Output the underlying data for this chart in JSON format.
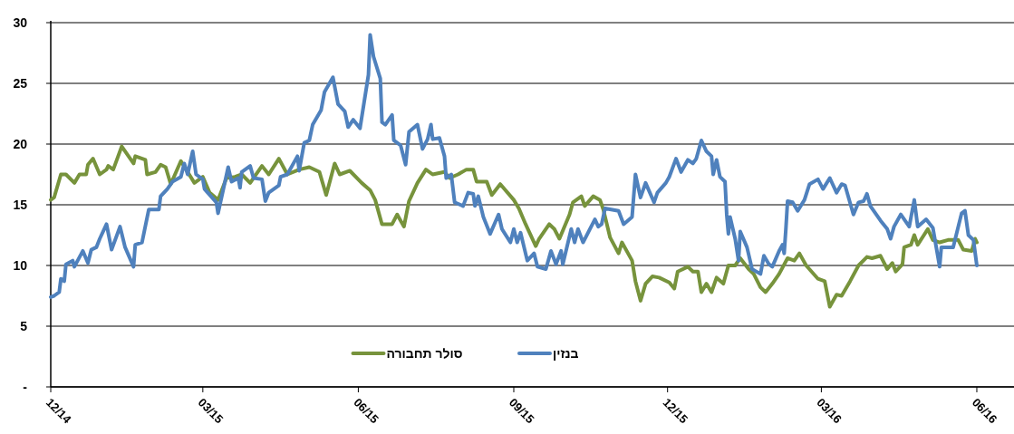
{
  "chart_data": {
    "type": "line",
    "xlim": [
      "2014-12-01",
      "2016-06-23"
    ],
    "xticks": [
      {
        "value": "2014-12-01",
        "label": "12/14"
      },
      {
        "value": "2015-03-01",
        "label": "03/15"
      },
      {
        "value": "2015-06-01",
        "label": "06/15"
      },
      {
        "value": "2015-09-01",
        "label": "09/15"
      },
      {
        "value": "2015-12-01",
        "label": "12/15"
      },
      {
        "value": "2016-03-01",
        "label": "03/16"
      },
      {
        "value": "2016-06-01",
        "label": "06/16"
      }
    ],
    "ylim": [
      0,
      30
    ],
    "yticks": [
      {
        "value": 0,
        "label": "-"
      },
      5,
      10,
      15,
      20,
      25,
      30
    ],
    "grid": "y",
    "legend": "bottom",
    "series": [
      {
        "name": "סולר תחבורה",
        "color": "#77933c",
        "x": [
          "2014-12-01",
          "2014-12-03",
          "2014-12-07",
          "2014-12-10",
          "2014-12-15",
          "2014-12-18",
          "2014-12-22",
          "2014-12-23",
          "2014-12-26",
          "2014-12-30",
          "2015-01-03",
          "2015-01-04",
          "2015-01-07",
          "2015-01-12",
          "2015-01-19",
          "2015-01-20",
          "2015-01-26",
          "2015-01-27",
          "2015-02-01",
          "2015-02-04",
          "2015-02-07",
          "2015-02-10",
          "2015-02-16",
          "2015-02-20",
          "2015-02-24",
          "2015-03-01",
          "2015-03-05",
          "2015-03-10",
          "2015-03-15",
          "2015-03-20",
          "2015-03-24",
          "2015-03-29",
          "2015-04-05",
          "2015-04-09",
          "2015-04-15",
          "2015-04-20",
          "2015-04-27",
          "2015-05-03",
          "2015-05-09",
          "2015-05-13",
          "2015-05-18",
          "2015-05-21",
          "2015-05-27",
          "2015-06-03",
          "2015-06-08",
          "2015-06-11",
          "2015-06-15",
          "2015-06-21",
          "2015-06-24",
          "2015-06-28",
          "2015-07-01",
          "2015-07-06",
          "2015-07-11",
          "2015-07-15",
          "2015-07-22",
          "2015-07-25",
          "2015-07-30",
          "2015-08-04",
          "2015-08-08",
          "2015-08-10",
          "2015-08-16",
          "2015-08-19",
          "2015-08-24",
          "2015-09-01",
          "2015-09-04",
          "2015-09-08",
          "2015-09-14",
          "2015-09-16",
          "2015-09-22",
          "2015-09-25",
          "2015-09-28",
          "2015-10-04",
          "2015-10-06",
          "2015-10-11",
          "2015-10-13",
          "2015-10-18",
          "2015-10-22",
          "2015-10-24",
          "2015-10-28",
          "2015-11-02",
          "2015-11-04",
          "2015-11-10",
          "2015-11-12",
          "2015-11-15",
          "2015-11-18",
          "2015-11-22",
          "2015-11-26",
          "2015-12-02",
          "2015-12-05",
          "2015-12-07",
          "2015-12-13",
          "2015-12-16",
          "2015-12-19",
          "2015-12-21",
          "2015-12-24",
          "2015-12-27",
          "2015-12-30",
          "2016-01-03",
          "2016-01-06",
          "2016-01-10",
          "2016-01-13",
          "2016-01-18",
          "2016-01-21",
          "2016-01-25",
          "2016-01-28",
          "2016-02-01",
          "2016-02-05",
          "2016-02-10",
          "2016-02-14",
          "2016-02-17",
          "2016-02-21",
          "2016-02-28",
          "2016-03-03",
          "2016-03-06",
          "2016-03-10",
          "2016-03-13",
          "2016-03-18",
          "2016-03-23",
          "2016-03-28",
          "2016-03-31",
          "2016-04-05",
          "2016-04-09",
          "2016-04-12",
          "2016-04-14",
          "2016-04-18",
          "2016-04-19",
          "2016-04-23",
          "2016-04-25",
          "2016-04-27",
          "2016-05-03",
          "2016-05-06",
          "2016-05-10",
          "2016-05-15",
          "2016-05-21",
          "2016-05-24",
          "2016-05-29",
          "2016-05-31",
          "2016-06-01"
        ],
        "values": [
          15.4,
          15.6,
          17.5,
          17.5,
          16.8,
          17.5,
          17.5,
          18.3,
          18.8,
          17.5,
          17.9,
          18.2,
          17.9,
          19.8,
          18.4,
          19.0,
          18.7,
          17.5,
          17.7,
          18.3,
          18.1,
          16.7,
          18.6,
          17.7,
          16.8,
          17.3,
          16.0,
          15.4,
          17.2,
          17.3,
          17.5,
          16.8,
          18.2,
          17.5,
          18.8,
          17.5,
          17.9,
          18.1,
          17.7,
          15.8,
          18.4,
          17.5,
          17.8,
          16.8,
          16.2,
          15.4,
          13.4,
          13.4,
          14.2,
          13.2,
          15.3,
          16.8,
          17.9,
          17.5,
          17.7,
          17.2,
          17.5,
          17.9,
          17.9,
          16.9,
          16.9,
          15.8,
          16.7,
          15.4,
          14.7,
          13.4,
          11.6,
          12.2,
          13.4,
          13.0,
          12.2,
          14.2,
          15.2,
          15.7,
          14.9,
          15.7,
          15.4,
          14.6,
          12.3,
          11.0,
          11.9,
          10.4,
          8.7,
          7.1,
          8.5,
          9.1,
          9.0,
          8.6,
          8.1,
          9.5,
          9.9,
          9.5,
          9.5,
          7.8,
          8.5,
          7.8,
          9.0,
          8.5,
          10.0,
          10.0,
          10.6,
          9.7,
          9.3,
          8.2,
          7.8,
          8.5,
          9.3,
          10.6,
          10.4,
          11.0,
          10.0,
          8.9,
          8.7,
          6.6,
          7.6,
          7.5,
          8.7,
          10.0,
          10.7,
          10.6,
          10.8,
          9.7,
          10.2,
          9.5,
          10.1,
          11.5,
          11.7,
          12.5,
          11.7,
          13.0,
          12.1,
          11.9,
          12.1,
          12.1,
          11.3,
          11.2,
          12.2,
          11.9
        ]
      },
      {
        "name": "בנזין",
        "color": "#4f81bd",
        "x": [
          "2014-12-01",
          "2014-12-03",
          "2014-12-06",
          "2014-12-07",
          "2014-12-09",
          "2014-12-10",
          "2014-12-14",
          "2014-12-15",
          "2014-12-20",
          "2014-12-23",
          "2014-12-25",
          "2014-12-28",
          "2014-12-30",
          "2015-01-03",
          "2015-01-06",
          "2015-01-11",
          "2015-01-14",
          "2015-01-19",
          "2015-01-20",
          "2015-01-24",
          "2015-01-28",
          "2015-02-03",
          "2015-02-04",
          "2015-02-08",
          "2015-02-11",
          "2015-02-16",
          "2015-02-18",
          "2015-02-20",
          "2015-02-23",
          "2015-02-25",
          "2015-03-01",
          "2015-03-02",
          "2015-03-09",
          "2015-03-10",
          "2015-03-16",
          "2015-03-18",
          "2015-03-22",
          "2015-03-23",
          "2015-03-24",
          "2015-03-29",
          "2015-03-31",
          "2015-04-05",
          "2015-04-07",
          "2015-04-09",
          "2015-04-15",
          "2015-04-16",
          "2015-04-20",
          "2015-04-26",
          "2015-04-27",
          "2015-04-30",
          "2015-05-03",
          "2015-05-05",
          "2015-05-10",
          "2015-05-12",
          "2015-05-17",
          "2015-05-20",
          "2015-05-24",
          "2015-05-26",
          "2015-05-29",
          "2015-06-02",
          "2015-06-07",
          "2015-06-08",
          "2015-06-10",
          "2015-06-14",
          "2015-06-15",
          "2015-06-17",
          "2015-06-21",
          "2015-06-22",
          "2015-06-26",
          "2015-06-29",
          "2015-07-01",
          "2015-07-06",
          "2015-07-09",
          "2015-07-12",
          "2015-07-14",
          "2015-07-15",
          "2015-07-19",
          "2015-07-22",
          "2015-07-23",
          "2015-07-26",
          "2015-07-28",
          "2015-08-02",
          "2015-08-05",
          "2015-08-08",
          "2015-08-09",
          "2015-08-11",
          "2015-08-14",
          "2015-08-18",
          "2015-08-23",
          "2015-08-25",
          "2015-08-30",
          "2015-09-01",
          "2015-09-03",
          "2015-09-05",
          "2015-09-09",
          "2015-09-13",
          "2015-09-15",
          "2015-09-20",
          "2015-09-23",
          "2015-09-26",
          "2015-09-29",
          "2015-09-30",
          "2015-10-05",
          "2015-10-07",
          "2015-10-09",
          "2015-10-12",
          "2015-10-19",
          "2015-10-21",
          "2015-10-23",
          "2015-10-25",
          "2015-11-02",
          "2015-11-05",
          "2015-11-10",
          "2015-11-12",
          "2015-11-15",
          "2015-11-18",
          "2015-11-23",
          "2015-11-25",
          "2015-11-30",
          "2015-12-02",
          "2015-12-06",
          "2015-12-09",
          "2015-12-13",
          "2015-12-16",
          "2015-12-18",
          "2015-12-21",
          "2015-12-24",
          "2015-12-27",
          "2015-12-28",
          "2015-12-30",
          "2016-01-01",
          "2016-01-04",
          "2016-01-05",
          "2016-01-06",
          "2016-01-07",
          "2016-01-10",
          "2016-01-12",
          "2016-01-13",
          "2016-01-17",
          "2016-01-20",
          "2016-01-25",
          "2016-01-27",
          "2016-01-30",
          "2016-02-01",
          "2016-02-05",
          "2016-02-07",
          "2016-02-08",
          "2016-02-09",
          "2016-02-10",
          "2016-02-13",
          "2016-02-16",
          "2016-02-20",
          "2016-02-23",
          "2016-02-28",
          "2016-03-02",
          "2016-03-06",
          "2016-03-10",
          "2016-03-13",
          "2016-03-15",
          "2016-03-20",
          "2016-03-23",
          "2016-03-26",
          "2016-03-28",
          "2016-03-30",
          "2016-04-05",
          "2016-04-09",
          "2016-04-11",
          "2016-04-13",
          "2016-04-17",
          "2016-04-22",
          "2016-04-25",
          "2016-04-27",
          "2016-05-02",
          "2016-05-06",
          "2016-05-10",
          "2016-05-11",
          "2016-05-18",
          "2016-05-23",
          "2016-05-25",
          "2016-05-27",
          "2016-05-30",
          "2016-06-01"
        ],
        "values": [
          7.4,
          7.5,
          7.8,
          8.9,
          8.7,
          10.1,
          10.4,
          9.9,
          11.2,
          10.2,
          11.3,
          11.5,
          12.2,
          13.4,
          11.3,
          13.2,
          11.5,
          9.9,
          11.7,
          11.9,
          14.6,
          14.6,
          15.7,
          16.3,
          16.9,
          17.3,
          18.4,
          17.5,
          19.4,
          17.5,
          17.1,
          16.3,
          15.2,
          14.3,
          18.1,
          16.9,
          17.2,
          16.4,
          17.7,
          18.2,
          17.2,
          17.1,
          15.3,
          16.0,
          16.6,
          17.3,
          17.5,
          19.0,
          17.8,
          20.1,
          20.3,
          21.6,
          22.8,
          24.3,
          25.5,
          23.3,
          22.7,
          21.4,
          22.0,
          21.3,
          25.7,
          29.0,
          27.2,
          25.4,
          21.8,
          21.6,
          22.4,
          20.3,
          19.9,
          18.3,
          21.0,
          21.6,
          19.6,
          20.4,
          21.6,
          20.4,
          20.5,
          19.0,
          17.2,
          17.5,
          15.2,
          14.9,
          16.0,
          15.9,
          14.9,
          15.7,
          14.0,
          12.6,
          14.2,
          13.0,
          11.9,
          13.0,
          11.9,
          12.7,
          10.4,
          11.0,
          9.9,
          9.7,
          11.2,
          10.1,
          11.2,
          10.1,
          13.0,
          11.9,
          13.0,
          11.9,
          13.8,
          13.2,
          13.4,
          14.7,
          14.5,
          13.4,
          14.0,
          17.5,
          15.6,
          16.8,
          15.2,
          16.0,
          16.8,
          17.3,
          18.8,
          17.7,
          18.7,
          18.4,
          18.8,
          20.3,
          19.4,
          19.0,
          17.5,
          18.7,
          17.3,
          16.9,
          14.2,
          12.6,
          14.0,
          12.2,
          10.4,
          12.8,
          11.5,
          9.7,
          9.3,
          10.8,
          10.1,
          9.9,
          11.2,
          11.7,
          11.0,
          13.0,
          15.3,
          15.2,
          14.5,
          15.4,
          16.7,
          17.1,
          16.3,
          17.2,
          16.0,
          16.7,
          16.6,
          14.2,
          15.2,
          15.3,
          15.9,
          14.9,
          13.7,
          13.0,
          12.2,
          13.2,
          14.2,
          13.2,
          15.4,
          13.2,
          13.8,
          13.1,
          9.9,
          11.5,
          11.5,
          14.3,
          14.5,
          12.5,
          12.1,
          10.0
        ]
      }
    ]
  }
}
